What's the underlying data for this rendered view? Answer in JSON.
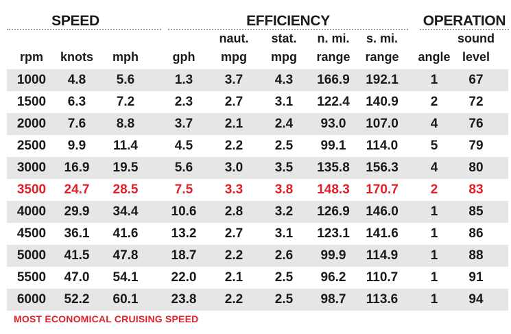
{
  "chart_data": {
    "type": "table",
    "groups": [
      {
        "label": "SPEED"
      },
      {
        "label": "EFFICIENCY"
      },
      {
        "label": "OPERATION"
      }
    ],
    "columns": [
      {
        "line1": "",
        "line2": "rpm"
      },
      {
        "line1": "",
        "line2": "knots"
      },
      {
        "line1": "",
        "line2": "mph"
      },
      {
        "line1": "",
        "line2": "gph"
      },
      {
        "line1": "naut.",
        "line2": "mpg"
      },
      {
        "line1": "stat.",
        "line2": "mpg"
      },
      {
        "line1": "n. mi.",
        "line2": "range"
      },
      {
        "line1": "s. mi.",
        "line2": "range"
      },
      {
        "line1": "",
        "line2": "angle"
      },
      {
        "line1": "sound",
        "line2": "level"
      }
    ],
    "rows": [
      [
        "1000",
        "4.8",
        "5.6",
        "1.3",
        "3.7",
        "4.3",
        "166.9",
        "192.1",
        "1",
        "67"
      ],
      [
        "1500",
        "6.3",
        "7.2",
        "2.3",
        "2.7",
        "3.1",
        "122.4",
        "140.9",
        "2",
        "72"
      ],
      [
        "2000",
        "7.6",
        "8.8",
        "3.7",
        "2.1",
        "2.4",
        "93.0",
        "107.0",
        "4",
        "76"
      ],
      [
        "2500",
        "9.9",
        "11.4",
        "4.5",
        "2.2",
        "2.5",
        "99.1",
        "114.0",
        "5",
        "79"
      ],
      [
        "3000",
        "16.9",
        "19.5",
        "5.6",
        "3.0",
        "3.5",
        "135.8",
        "156.3",
        "4",
        "80"
      ],
      [
        "3500",
        "24.7",
        "28.5",
        "7.5",
        "3.3",
        "3.8",
        "148.3",
        "170.7",
        "2",
        "83"
      ],
      [
        "4000",
        "29.9",
        "34.4",
        "10.6",
        "2.8",
        "3.2",
        "126.9",
        "146.0",
        "1",
        "85"
      ],
      [
        "4500",
        "36.1",
        "41.6",
        "13.2",
        "2.7",
        "3.1",
        "123.1",
        "141.6",
        "1",
        "86"
      ],
      [
        "5000",
        "41.5",
        "47.8",
        "18.7",
        "2.2",
        "2.6",
        "99.9",
        "114.9",
        "1",
        "88"
      ],
      [
        "5500",
        "47.0",
        "54.1",
        "22.0",
        "2.1",
        "2.5",
        "96.2",
        "110.7",
        "1",
        "91"
      ],
      [
        "6000",
        "52.2",
        "60.1",
        "23.8",
        "2.2",
        "2.5",
        "98.7",
        "113.6",
        "1",
        "94"
      ]
    ],
    "highlight_row": "3500",
    "footnote": "MOST ECONOMICAL CRUISING SPEED",
    "colors": {
      "highlight": "#e0202a",
      "shade": "#e6e6e6",
      "text": "#1a1a1a"
    }
  }
}
